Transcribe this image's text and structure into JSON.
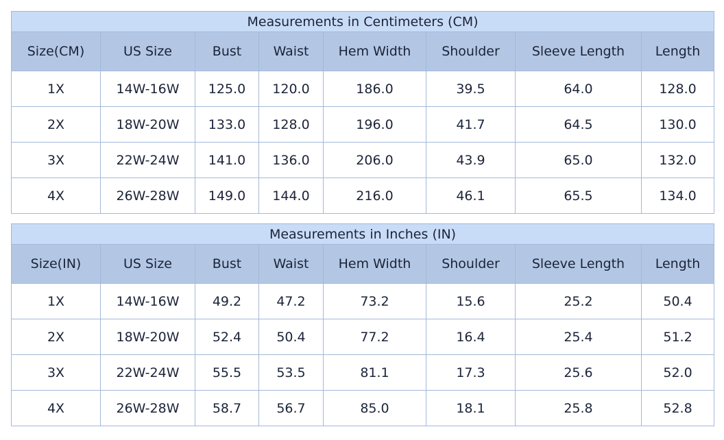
{
  "tables": [
    {
      "title": "Measurements in Centimeters (CM)",
      "headers": [
        "Size(CM)",
        "US Size",
        "Bust",
        "Waist",
        "Hem Width",
        "Shoulder",
        "Sleeve Length",
        "Length"
      ],
      "rows": [
        [
          "1X",
          "14W-16W",
          "125.0",
          "120.0",
          "186.0",
          "39.5",
          "64.0",
          "128.0"
        ],
        [
          "2X",
          "18W-20W",
          "133.0",
          "128.0",
          "196.0",
          "41.7",
          "64.5",
          "130.0"
        ],
        [
          "3X",
          "22W-24W",
          "141.0",
          "136.0",
          "206.0",
          "43.9",
          "65.0",
          "132.0"
        ],
        [
          "4X",
          "26W-28W",
          "149.0",
          "144.0",
          "216.0",
          "46.1",
          "65.5",
          "134.0"
        ]
      ]
    },
    {
      "title": "Measurements in Inches (IN)",
      "headers": [
        "Size(IN)",
        "US Size",
        "Bust",
        "Waist",
        "Hem Width",
        "Shoulder",
        "Sleeve Length",
        "Length"
      ],
      "rows": [
        [
          "1X",
          "14W-16W",
          "49.2",
          "47.2",
          "73.2",
          "15.6",
          "25.2",
          "50.4"
        ],
        [
          "2X",
          "18W-20W",
          "52.4",
          "50.4",
          "77.2",
          "16.4",
          "25.4",
          "51.2"
        ],
        [
          "3X",
          "22W-24W",
          "55.5",
          "53.5",
          "81.1",
          "17.3",
          "25.6",
          "52.0"
        ],
        [
          "4X",
          "26W-28W",
          "58.7",
          "56.7",
          "85.0",
          "18.1",
          "25.8",
          "52.8"
        ]
      ]
    }
  ],
  "colors": {
    "title_bg": "#c9dcf7",
    "header_bg": "#b3c7e5",
    "border": "#a3b8d8",
    "text": "#1b2337"
  }
}
